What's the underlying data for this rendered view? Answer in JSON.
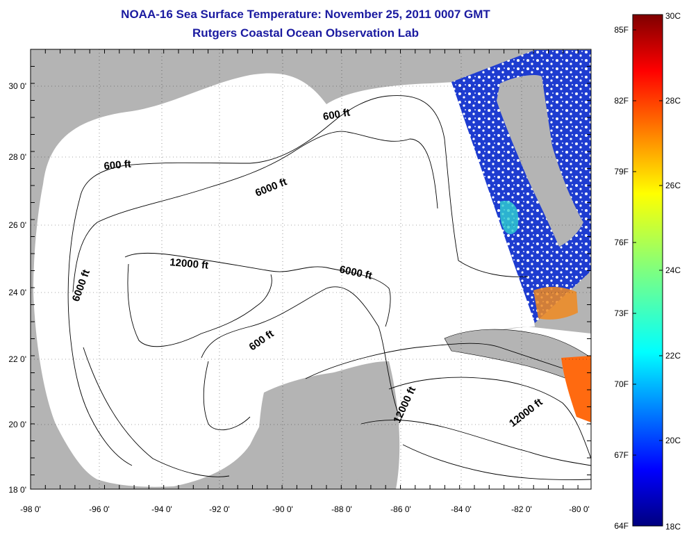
{
  "title": "NOAA-16 Sea Surface Temperature:  November 25, 2011 0007 GMT",
  "subtitle": "Rutgers Coastal Ocean Observation Lab",
  "map": {
    "lon_ticks": [
      "-98 0'",
      "-96 0'",
      "-94 0'",
      "-92 0'",
      "-90 0'",
      "-88 0'",
      "-86 0'",
      "-84 0'",
      "-82 0'",
      "-80 0'"
    ],
    "lat_ticks": [
      "30 0'",
      "28 0'",
      "26 0'",
      "24 0'",
      "22 0'",
      "20 0'",
      "18 0'"
    ],
    "contour_labels": [
      "600 ft",
      "600 ft",
      "6000 ft",
      "12000 ft",
      "6000 ft",
      "6000 ft",
      "600 ft",
      "12000 ft",
      "12000 ft"
    ],
    "colors": {
      "land": "#b4b4b4",
      "ocean": "#ffffff",
      "title": "#1a1aa0"
    }
  },
  "colorbar": {
    "fahrenheit": [
      "85F",
      "82F",
      "79F",
      "76F",
      "73F",
      "70F",
      "67F",
      "64F"
    ],
    "celsius": [
      "30C",
      "28C",
      "26C",
      "24C",
      "22C",
      "20C",
      "18C"
    ],
    "range_c": [
      18,
      30
    ],
    "colormap": "jet"
  }
}
